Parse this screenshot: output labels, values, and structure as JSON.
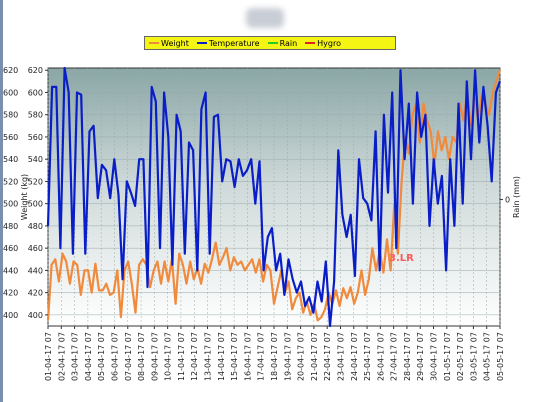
{
  "legend": {
    "weight": {
      "label": "Weight",
      "color": "#f08a3c"
    },
    "temperature": {
      "label": "Temperature",
      "color": "#0a1ec8"
    },
    "rain": {
      "label": "Rain",
      "color": "#22cc22"
    },
    "hygro": {
      "label": "Hygro",
      "color": "#dd2222"
    }
  },
  "annotation": "3.LR",
  "chart_data": {
    "type": "line",
    "ylabel": "Weight (kg)",
    "y2label": "Rain (mm)",
    "ylim": [
      390,
      622
    ],
    "y_ticks": [
      400,
      420,
      440,
      460,
      480,
      500,
      520,
      540,
      560,
      580,
      600,
      620
    ],
    "y2_ticks": [
      0
    ],
    "x_labels": [
      "01-04-17 07",
      "02-04-17 07",
      "03-04-17 07",
      "04-04-17 07",
      "05-04-17 07",
      "06-04-17 07",
      "07-04-17 07",
      "08-04-17 07",
      "09-04-17 07",
      "10-04-17 07",
      "11-04-17 07",
      "12-04-17 07",
      "13-04-17 07",
      "14-04-17 07",
      "15-04-17 07",
      "16-04-17 07",
      "17-04-17 07",
      "18-04-17 07",
      "19-04-17 07",
      "20-04-17 07",
      "21-04-17 07",
      "22-04-17 07",
      "23-04-17 07",
      "24-04-17 07",
      "25-04-17 07",
      "26-04-17 07",
      "27-04-17 07",
      "28-04-17 07",
      "29-04-17 07",
      "30-04-17 07",
      "01-05-17 07",
      "02-05-17 07",
      "03-05-17 07",
      "04-05-17 07",
      "05-05-17 07"
    ],
    "grid": true,
    "legend_position": "top",
    "series": [
      {
        "name": "Weight",
        "color": "#f08a3c",
        "values": [
          395,
          445,
          450,
          430,
          455,
          448,
          428,
          448,
          445,
          418,
          440,
          440,
          420,
          446,
          422,
          422,
          428,
          418,
          420,
          440,
          398,
          440,
          448,
          428,
          402,
          445,
          450,
          445,
          425,
          440,
          448,
          428,
          448,
          430,
          450,
          410,
          455,
          445,
          428,
          448,
          432,
          442,
          428,
          446,
          438,
          450,
          465,
          445,
          452,
          460,
          440,
          452,
          445,
          448,
          440,
          445,
          450,
          438,
          450,
          430,
          445,
          440,
          410,
          425,
          440,
          420,
          430,
          405,
          415,
          420,
          402,
          412,
          400,
          410,
          395,
          398,
          405,
          420,
          410,
          422,
          408,
          424,
          415,
          425,
          410,
          420,
          440,
          418,
          432,
          460,
          440,
          458,
          438,
          468,
          440,
          500,
          455,
          520,
          560,
          545,
          580,
          590,
          555,
          590,
          575,
          565,
          535,
          565,
          548,
          560,
          540,
          560,
          555,
          590,
          575,
          600,
          570,
          595,
          575,
          598,
          590,
          580,
          600,
          610,
          620
        ]
      },
      {
        "name": "Temperature",
        "color": "#0a1ec8",
        "values": [
          480,
          605,
          605,
          460,
          625,
          600,
          455,
          600,
          598,
          455,
          565,
          570,
          505,
          535,
          530,
          505,
          540,
          508,
          432,
          520,
          510,
          498,
          540,
          540,
          425,
          605,
          592,
          460,
          600,
          560,
          445,
          580,
          565,
          455,
          555,
          548,
          440,
          585,
          600,
          455,
          578,
          580,
          520,
          540,
          538,
          515,
          540,
          525,
          530,
          540,
          500,
          538,
          440,
          470,
          478,
          440,
          455,
          418,
          450,
          432,
          420,
          430,
          408,
          416,
          402,
          430,
          412,
          448,
          390,
          430,
          548,
          490,
          470,
          490,
          435,
          540,
          505,
          500,
          485,
          565,
          440,
          580,
          510,
          600,
          460,
          620,
          540,
          590,
          500,
          600,
          560,
          580,
          480,
          540,
          500,
          525,
          440,
          540,
          480,
          590,
          500,
          610,
          540,
          620,
          555,
          605,
          570,
          520,
          600,
          610
        ]
      },
      {
        "name": "Rain",
        "color": "#22cc22",
        "values": []
      },
      {
        "name": "Hygro",
        "color": "#dd2222",
        "values": []
      }
    ]
  }
}
